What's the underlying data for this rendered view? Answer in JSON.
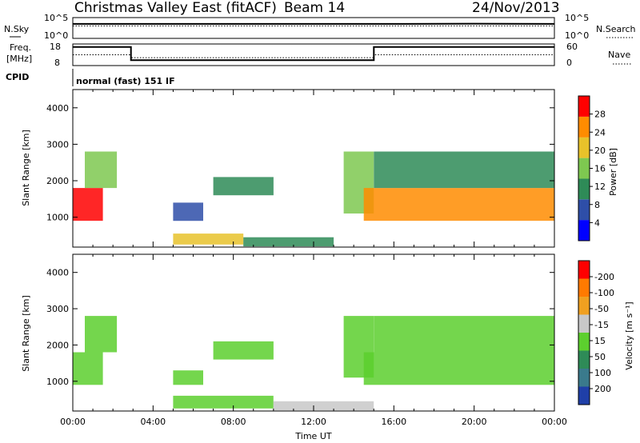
{
  "header": {
    "title": "Christmas Valley East (fitACF)",
    "beam": "Beam 14",
    "date": "24/Nov/2013",
    "cpid_label": "CPID",
    "cpid_value": "normal (fast) 151 IF"
  },
  "panels": {
    "noise": {
      "left_label": "N.Sky",
      "right_label": "N.Search",
      "y_ticks_left": [
        "10^5",
        "10^0"
      ],
      "y_ticks_right": [
        "10^5",
        "10^0"
      ]
    },
    "freq": {
      "left_label_1": "Freq.",
      "left_label_2": "[MHz]",
      "right_label": "Nave",
      "y_ticks_left": [
        "18",
        "8"
      ],
      "y_ticks_right": [
        "60",
        "0"
      ]
    },
    "power": {
      "ylabel": "Slant Range [km]",
      "colorbar_label": "Power [dB]"
    },
    "velocity": {
      "ylabel": "Slant Range [km]",
      "colorbar_label": "Velocity [m s⁻¹]"
    }
  },
  "chart_data": [
    {
      "type": "line",
      "title": "N.Sky / N.Search",
      "x_ticks": [
        "00:00",
        "04:00",
        "08:00",
        "12:00",
        "16:00",
        "20:00",
        "00:00"
      ],
      "x_range_hours": [
        0,
        24
      ],
      "y_scale": "log",
      "ylim": [
        1,
        100000
      ],
      "series": [
        {
          "name": "N.Sky",
          "style": "solid",
          "x": [
            0,
            4,
            8,
            12,
            16,
            20,
            24
          ],
          "values": [
            3000,
            3000,
            3000,
            3000,
            3000,
            3500,
            3000
          ]
        },
        {
          "name": "N.Search",
          "style": "dotted",
          "x": [
            0,
            4,
            8,
            12,
            16,
            20,
            24
          ],
          "values": [
            1000,
            1000,
            1000,
            1000,
            1000,
            1000,
            1000
          ]
        }
      ]
    },
    {
      "type": "line",
      "title": "Freq / Nave",
      "x_range_hours": [
        0,
        24
      ],
      "ylim_left": [
        8,
        18
      ],
      "ylim_right": [
        0,
        60
      ],
      "series": [
        {
          "name": "Freq. [MHz]",
          "style": "solid",
          "x": [
            0,
            2.9,
            2.9,
            15,
            15,
            24
          ],
          "values": [
            16.6,
            16.6,
            10.5,
            10.5,
            16.6,
            16.6
          ]
        },
        {
          "name": "Nave",
          "style": "dotted",
          "x": [
            0,
            2.9,
            2.9,
            15,
            15,
            24
          ],
          "values": [
            30,
            30,
            22,
            22,
            30,
            30
          ]
        }
      ]
    },
    {
      "type": "heatmap",
      "title": "Power [dB]",
      "xlabel": "Time UT",
      "ylabel": "Slant Range [km]",
      "x_ticks": [
        "00:00",
        "04:00",
        "08:00",
        "12:00",
        "16:00",
        "20:00",
        "00:00"
      ],
      "y_ticks": [
        1000,
        2000,
        3000,
        4000
      ],
      "ylim": [
        180,
        4500
      ],
      "colorbar_ticks": [
        4,
        8,
        12,
        16,
        20,
        24,
        28
      ],
      "colorbar_range": [
        0,
        30
      ],
      "colorbar_colors": [
        "#0000ff",
        "#2e4ea8",
        "#2e8b57",
        "#7ec850",
        "#e8c22a",
        "#ff8c00",
        "#ff0000"
      ],
      "regions": [
        {
          "t0": 0.0,
          "t1": 1.5,
          "r0": 900,
          "r1": 1800,
          "value": 26
        },
        {
          "t0": 0.6,
          "t1": 2.2,
          "r0": 1800,
          "r1": 2800,
          "value": 16
        },
        {
          "t0": 5.0,
          "t1": 6.5,
          "r0": 900,
          "r1": 1400,
          "value": 6
        },
        {
          "t0": 5.0,
          "t1": 8.5,
          "r0": 250,
          "r1": 550,
          "value": 20
        },
        {
          "t0": 8.5,
          "t1": 13.0,
          "r0": 200,
          "r1": 450,
          "value": 10
        },
        {
          "t0": 7.0,
          "t1": 10.0,
          "r0": 1600,
          "r1": 2100,
          "value": 12
        },
        {
          "t0": 13.5,
          "t1": 15.0,
          "r0": 1100,
          "r1": 2800,
          "value": 14
        },
        {
          "t0": 14.5,
          "t1": 24.0,
          "r0": 900,
          "r1": 1800,
          "value": 24
        },
        {
          "t0": 15.0,
          "t1": 24.0,
          "r0": 1800,
          "r1": 2800,
          "value": 12
        }
      ]
    },
    {
      "type": "heatmap",
      "title": "Velocity [m s-1]",
      "xlabel": "Time UT",
      "ylabel": "Slant Range [km]",
      "x_ticks": [
        "00:00",
        "04:00",
        "08:00",
        "12:00",
        "16:00",
        "20:00",
        "00:00"
      ],
      "y_ticks": [
        1000,
        2000,
        3000,
        4000
      ],
      "ylim": [
        180,
        4500
      ],
      "colorbar_ticks": [
        200,
        100,
        50,
        15,
        -15,
        -50,
        -100,
        -200
      ],
      "colorbar_range": [
        -250,
        250
      ],
      "colorbar_colors": [
        "#1f3fa8",
        "#3a7a8c",
        "#2e8b57",
        "#5ccf2e",
        "#c8c8c8",
        "#f0a020",
        "#ff7a00",
        "#ff0000"
      ],
      "regions": [
        {
          "t0": 0.0,
          "t1": 1.5,
          "r0": 900,
          "r1": 1800,
          "value": 0
        },
        {
          "t0": 0.6,
          "t1": 2.2,
          "r0": 1800,
          "r1": 2800,
          "value": 0
        },
        {
          "t0": 5.0,
          "t1": 6.5,
          "r0": 900,
          "r1": 1300,
          "value": 0
        },
        {
          "t0": 5.0,
          "t1": 10.0,
          "r0": 250,
          "r1": 600,
          "value": 40
        },
        {
          "t0": 10.0,
          "t1": 15.0,
          "r0": 200,
          "r1": 450,
          "value": -60
        },
        {
          "t0": 7.0,
          "t1": 10.0,
          "r0": 1600,
          "r1": 2100,
          "value": 40
        },
        {
          "t0": 13.5,
          "t1": 15.0,
          "r0": 1100,
          "r1": 2800,
          "value": 40
        },
        {
          "t0": 14.5,
          "t1": 24.0,
          "r0": 900,
          "r1": 1800,
          "value": 0
        },
        {
          "t0": 15.0,
          "t1": 24.0,
          "r0": 1800,
          "r1": 2800,
          "value": 0
        }
      ]
    }
  ]
}
